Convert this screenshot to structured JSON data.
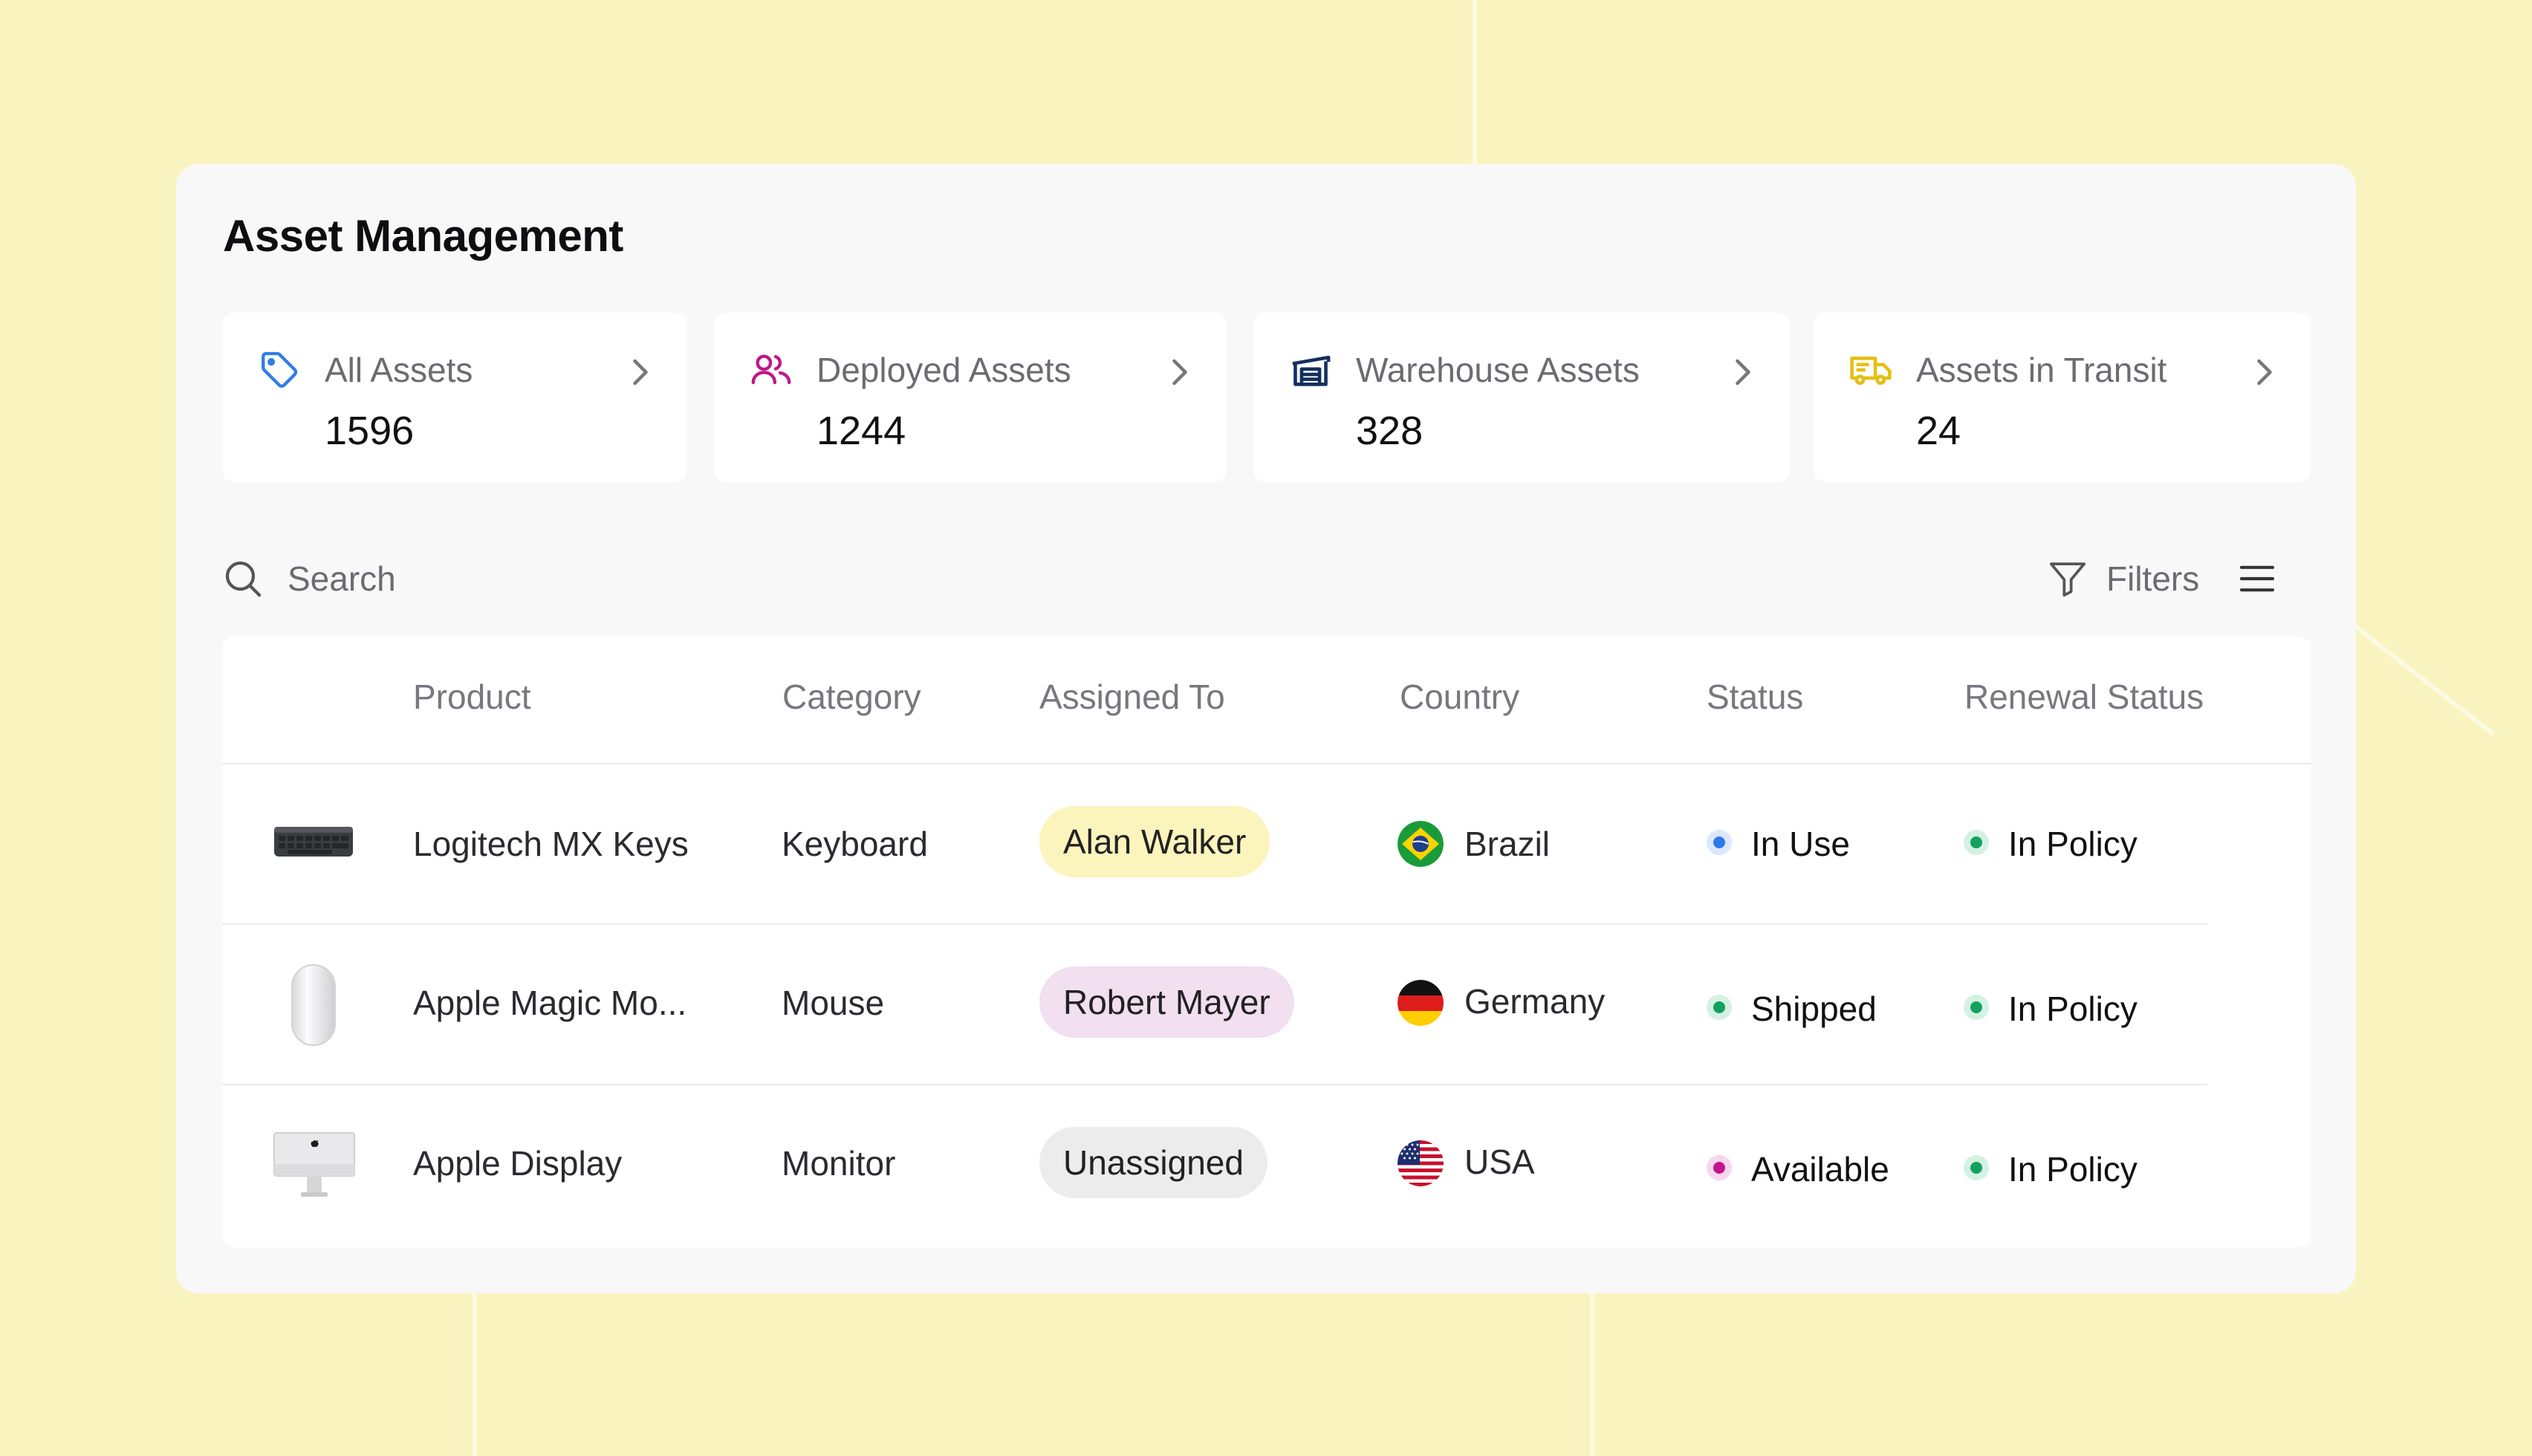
{
  "page": {
    "title": "Asset Management"
  },
  "cards": [
    {
      "label": "All Assets",
      "value": "1596",
      "icon": "tag-icon",
      "icon_color": "#2f7ee6"
    },
    {
      "label": "Deployed Assets",
      "value": "1244",
      "icon": "users-icon",
      "icon_color": "#c0168c"
    },
    {
      "label": "Warehouse Assets",
      "value": "328",
      "icon": "warehouse-icon",
      "icon_color": "#13305e"
    },
    {
      "label": "Assets in Transit",
      "value": "24",
      "icon": "truck-icon",
      "icon_color": "#e6bf13"
    }
  ],
  "toolbar": {
    "search_placeholder": "Search",
    "filters_label": "Filters"
  },
  "table": {
    "columns": [
      "Product",
      "Category",
      "Assigned To",
      "Country",
      "Status",
      "Renewal Status"
    ],
    "rows": [
      {
        "product": "Logitech MX Keys",
        "image": "keyboard-image",
        "category": "Keyboard",
        "assigned_to": "Alan Walker",
        "assigned_color": "#fbf4bd",
        "country": "Brazil",
        "flag": "brazil-flag",
        "status": "In Use",
        "status_color": "#2f79ea",
        "renewal": "In Policy",
        "renewal_color": "#12a160"
      },
      {
        "product": "Apple Magic Mo...",
        "image": "mouse-image",
        "category": "Mouse",
        "assigned_to": "Robert Mayer",
        "assigned_color": "#f2dff0",
        "country": "Germany",
        "flag": "germany-flag",
        "status": "Shipped",
        "status_color": "#12a160",
        "renewal": "In Policy",
        "renewal_color": "#12a160"
      },
      {
        "product": "Apple Display",
        "image": "monitor-image",
        "category": "Monitor",
        "assigned_to": "Unassigned",
        "assigned_color": "#ececec",
        "country": "USA",
        "flag": "usa-flag",
        "status": "Available",
        "status_color": "#c2168f",
        "renewal": "In Policy",
        "renewal_color": "#12a160"
      }
    ]
  },
  "colors": {
    "background": "#f9f4bf",
    "panel": "#f8f8f8"
  }
}
